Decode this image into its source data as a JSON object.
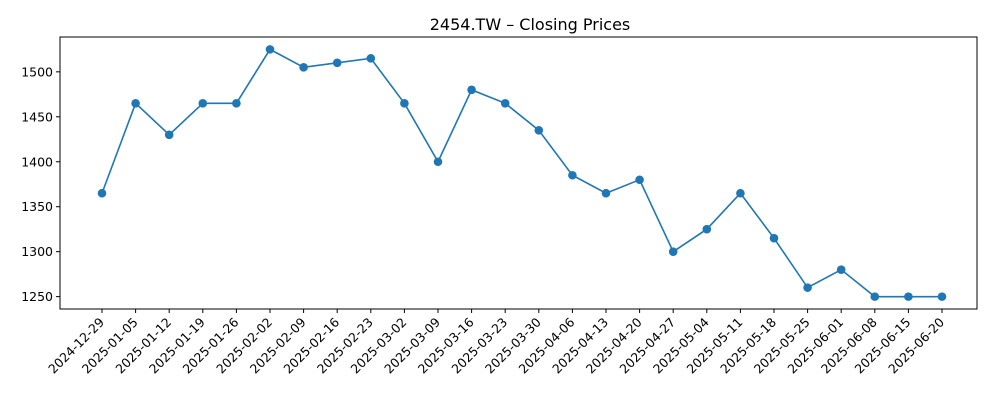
{
  "chart_data": {
    "type": "line",
    "title": "2454.TW – Closing Prices",
    "xlabel": "",
    "ylabel": "",
    "x": [
      "2024-12-29",
      "2025-01-05",
      "2025-01-12",
      "2025-01-19",
      "2025-01-26",
      "2025-02-02",
      "2025-02-09",
      "2025-02-16",
      "2025-02-23",
      "2025-03-02",
      "2025-03-09",
      "2025-03-16",
      "2025-03-23",
      "2025-03-30",
      "2025-04-06",
      "2025-04-13",
      "2025-04-20",
      "2025-04-27",
      "2025-05-04",
      "2025-05-11",
      "2025-05-18",
      "2025-05-25",
      "2025-06-01",
      "2025-06-08",
      "2025-06-15",
      "2025-06-20"
    ],
    "series": [
      {
        "values": [
          1365,
          1465,
          1430,
          1465,
          1465,
          1525,
          1505,
          1510,
          1515,
          1465,
          1400,
          1480,
          1465,
          1435,
          1385,
          1365,
          1380,
          1300,
          1325,
          1365,
          1315,
          1260,
          1280,
          1250,
          1250,
          1250
        ],
        "color": "#1f77b4",
        "marker": "circle"
      }
    ],
    "yticks": [
      1250,
      1300,
      1350,
      1400,
      1450,
      1500
    ],
    "ylim": [
      1236.25,
      1538.75
    ],
    "grid": false,
    "legend": "none"
  }
}
